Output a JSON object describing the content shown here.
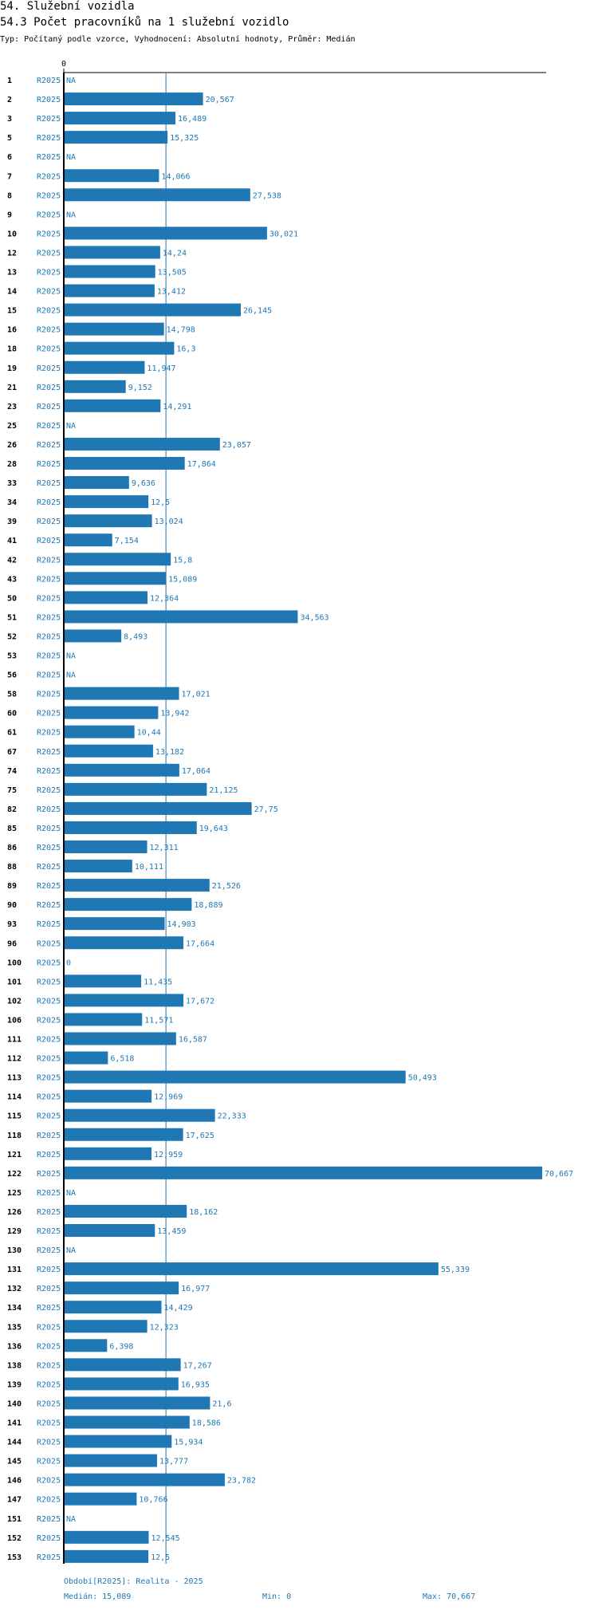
{
  "header": {
    "title": "54. Služební vozidla",
    "subtitle": "54.3 Počet pracovníků na 1 služební vozidlo",
    "type_line": "Typ: Počítaný podle vzorce, Vyhodnocení: Absolutní hodnoty, Průměr: Medián"
  },
  "colors": {
    "bar": "#1f77b4",
    "median_line": "#1f77b4",
    "axis": "#000000"
  },
  "chart_data": {
    "type": "bar",
    "orientation": "horizontal",
    "series_name": "R2025",
    "axis_zero_label": "0",
    "median": 15.089,
    "xlim": [
      0,
      70.667
    ],
    "categories": [
      "1",
      "2",
      "3",
      "5",
      "6",
      "7",
      "8",
      "9",
      "10",
      "12",
      "13",
      "14",
      "15",
      "16",
      "18",
      "19",
      "21",
      "23",
      "25",
      "26",
      "28",
      "33",
      "34",
      "39",
      "41",
      "42",
      "43",
      "50",
      "51",
      "52",
      "53",
      "56",
      "58",
      "60",
      "61",
      "67",
      "74",
      "75",
      "82",
      "85",
      "86",
      "88",
      "89",
      "90",
      "93",
      "96",
      "100",
      "101",
      "102",
      "106",
      "111",
      "112",
      "113",
      "114",
      "115",
      "118",
      "121",
      "122",
      "125",
      "126",
      "129",
      "130",
      "131",
      "132",
      "134",
      "135",
      "136",
      "138",
      "139",
      "140",
      "141",
      "144",
      "145",
      "146",
      "147",
      "151",
      "152",
      "153"
    ],
    "values": [
      null,
      20.567,
      16.489,
      15.325,
      null,
      14.066,
      27.538,
      null,
      30.021,
      14.24,
      13.505,
      13.412,
      26.145,
      14.798,
      16.3,
      11.947,
      9.152,
      14.291,
      null,
      23.057,
      17.864,
      9.636,
      12.5,
      13.024,
      7.154,
      15.8,
      15.089,
      12.364,
      34.563,
      8.493,
      null,
      null,
      17.021,
      13.942,
      10.44,
      13.182,
      17.064,
      21.125,
      27.75,
      19.643,
      12.311,
      10.111,
      21.526,
      18.889,
      14.903,
      17.664,
      0,
      11.435,
      17.672,
      11.571,
      16.587,
      6.518,
      50.493,
      12.969,
      22.333,
      17.625,
      12.959,
      70.667,
      null,
      18.162,
      13.459,
      null,
      55.339,
      16.977,
      14.429,
      12.323,
      6.398,
      17.267,
      16.935,
      21.6,
      18.586,
      15.934,
      13.777,
      23.782,
      10.766,
      null,
      12.545,
      12.5
    ],
    "value_labels": [
      "NA",
      "20,567",
      "16,489",
      "15,325",
      "NA",
      "14,066",
      "27,538",
      "NA",
      "30,021",
      "14,24",
      "13,505",
      "13,412",
      "26,145",
      "14,798",
      "16,3",
      "11,947",
      "9,152",
      "14,291",
      "NA",
      "23,057",
      "17,864",
      "9,636",
      "12,5",
      "13,024",
      "7,154",
      "15,8",
      "15,089",
      "12,364",
      "34,563",
      "8,493",
      "NA",
      "NA",
      "17,021",
      "13,942",
      "10,44",
      "13,182",
      "17,064",
      "21,125",
      "27,75",
      "19,643",
      "12,311",
      "10,111",
      "21,526",
      "18,889",
      "14,903",
      "17,664",
      "0",
      "11,435",
      "17,672",
      "11,571",
      "16,587",
      "6,518",
      "50,493",
      "12,969",
      "22,333",
      "17,625",
      "12,959",
      "70,667",
      "NA",
      "18,162",
      "13,459",
      "NA",
      "55,339",
      "16,977",
      "14,429",
      "12,323",
      "6,398",
      "17,267",
      "16,935",
      "21,6",
      "18,586",
      "15,934",
      "13,777",
      "23,782",
      "10,766",
      "NA",
      "12,545",
      "12,5"
    ]
  },
  "footer": {
    "period": "Období[R2025]: Realita - 2025",
    "median": "Medián: 15,089",
    "min": "Min: 0",
    "max": "Max: 70,667"
  }
}
